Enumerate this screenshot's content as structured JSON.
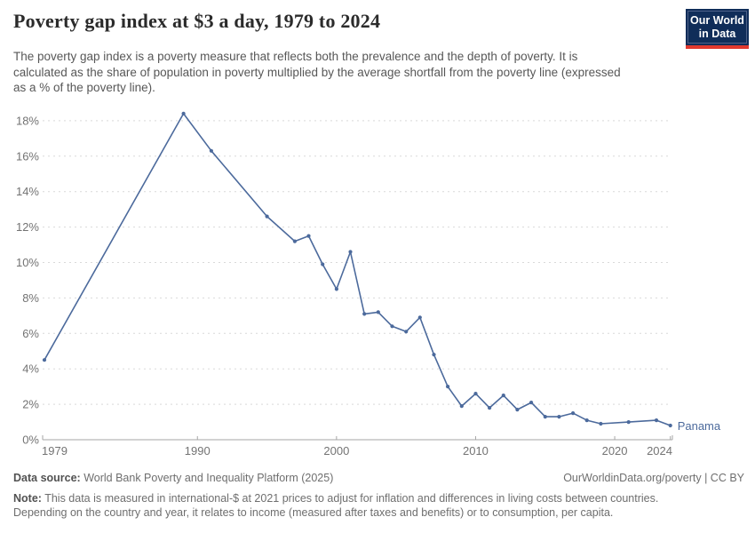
{
  "header": {
    "title": "Poverty gap index at $3 a day, 1979 to 2024",
    "subtitle": "The poverty gap index is a poverty measure that reflects both the prevalence and the depth of poverty. It is calculated as the share of population in poverty multiplied by the average shortfall from the poverty line (expressed as a % of the poverty line).",
    "logo": {
      "line1": "Our World",
      "line2": "in Data"
    }
  },
  "chart_data": {
    "type": "line",
    "title": "Poverty gap index at $3 a day, 1979 to 2024",
    "xlabel": "",
    "ylabel": "",
    "xlim": [
      1979,
      2024
    ],
    "ylim": [
      0,
      18.5
    ],
    "grid": "horizontal-dashed",
    "legend": "end-of-line-label",
    "x_ticks": [
      1979,
      1990,
      2000,
      2010,
      2020,
      2024
    ],
    "y_ticks": [
      0,
      2,
      4,
      6,
      8,
      10,
      12,
      14,
      16,
      18
    ],
    "y_tick_suffix": "%",
    "series": [
      {
        "name": "Panama",
        "color": "#4c6a9c",
        "points": [
          [
            1979,
            4.5
          ],
          [
            1989,
            18.4
          ],
          [
            1991,
            16.3
          ],
          [
            1995,
            12.6
          ],
          [
            1997,
            11.2
          ],
          [
            1998,
            11.5
          ],
          [
            1999,
            9.9
          ],
          [
            2000,
            8.5
          ],
          [
            2001,
            10.6
          ],
          [
            2002,
            7.1
          ],
          [
            2003,
            7.2
          ],
          [
            2004,
            6.4
          ],
          [
            2005,
            6.1
          ],
          [
            2006,
            6.9
          ],
          [
            2007,
            4.8
          ],
          [
            2008,
            3.0
          ],
          [
            2009,
            1.9
          ],
          [
            2010,
            2.6
          ],
          [
            2011,
            1.8
          ],
          [
            2012,
            2.5
          ],
          [
            2013,
            1.7
          ],
          [
            2014,
            2.1
          ],
          [
            2015,
            1.3
          ],
          [
            2016,
            1.3
          ],
          [
            2017,
            1.5
          ],
          [
            2018,
            1.1
          ],
          [
            2019,
            0.9
          ],
          [
            2021,
            1.0
          ],
          [
            2023,
            1.1
          ],
          [
            2024,
            0.8
          ]
        ]
      }
    ],
    "colors": {
      "line": "#4c6a9c",
      "grid": "#d9d9d9",
      "axis": "#a6a6a6",
      "tick_label": "#737373"
    }
  },
  "footer": {
    "datasource_label": "Data source:",
    "datasource_text": " World Bank Poverty and Inequality Platform (2025)",
    "attribution": "OurWorldinData.org/poverty | CC BY",
    "note_label": "Note:",
    "note_text": " This data is measured in international-$ at 2021 prices to adjust for inflation and differences in living costs between countries. Depending on the country and year, it relates to income (measured after taxes and benefits) or to consumption, per capita."
  }
}
